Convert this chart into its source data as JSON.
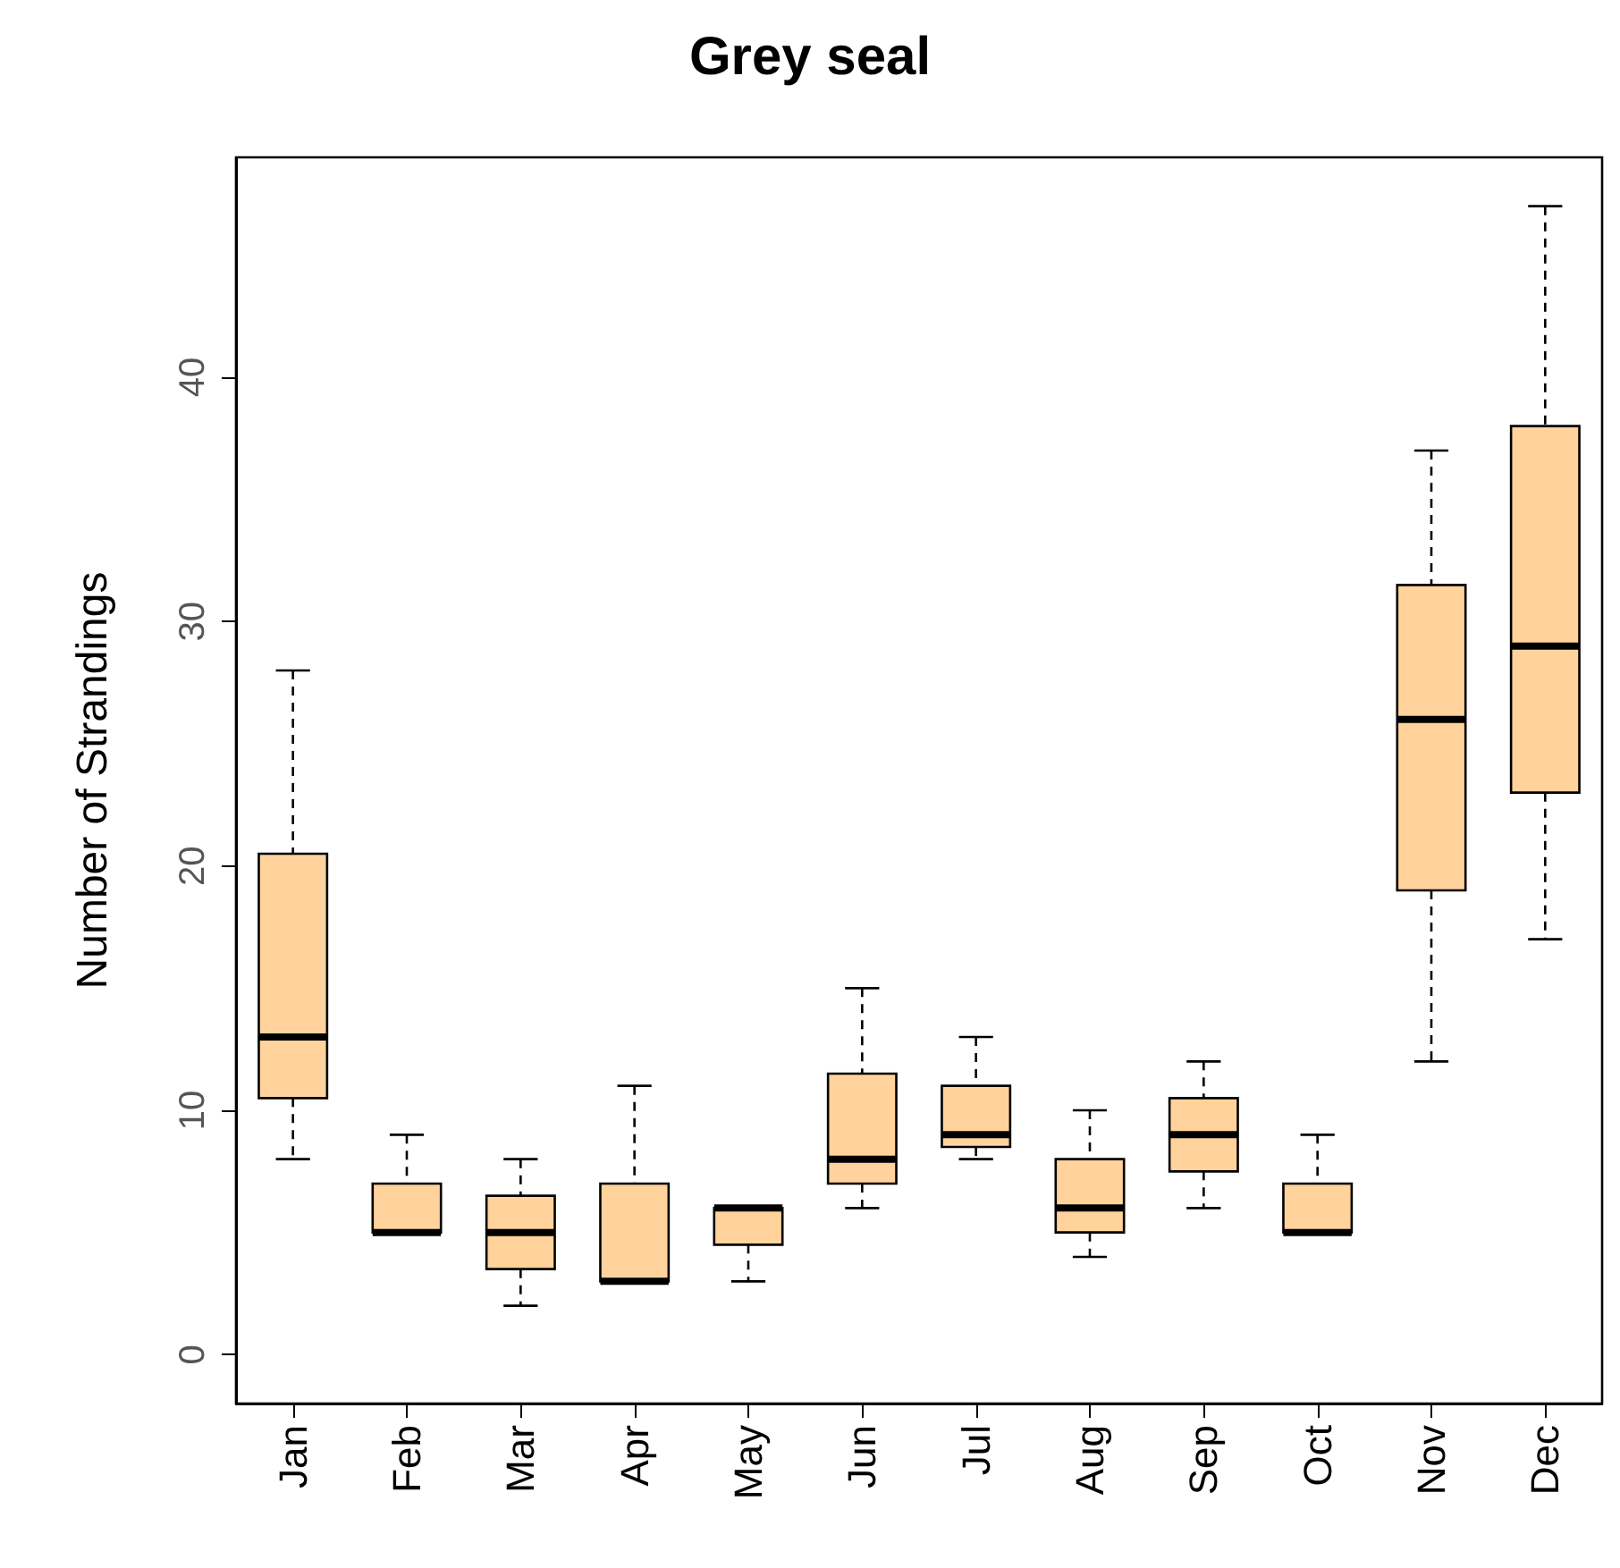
{
  "chart_data": {
    "type": "box",
    "title": "Grey seal",
    "ylabel": "Number of Strandings",
    "categories": [
      "Jan",
      "Feb",
      "Mar",
      "Apr",
      "May",
      "Jun",
      "Jul",
      "Aug",
      "Sep",
      "Oct",
      "Nov",
      "Dec"
    ],
    "color": "#ffd39b",
    "boxes": [
      {
        "low": 8,
        "q1": 10.5,
        "median": 13,
        "q3": 20.5,
        "high": 28
      },
      {
        "low": 5,
        "q1": 5,
        "median": 5,
        "q3": 7,
        "high": 9
      },
      {
        "low": 2,
        "q1": 3.5,
        "median": 5,
        "q3": 6.5,
        "high": 8
      },
      {
        "low": 3,
        "q1": 3,
        "median": 3,
        "q3": 7,
        "high": 11
      },
      {
        "low": 3,
        "q1": 4.5,
        "median": 6,
        "q3": 6,
        "high": 6
      },
      {
        "low": 6,
        "q1": 7,
        "median": 8,
        "q3": 11.5,
        "high": 15
      },
      {
        "low": 8,
        "q1": 8.5,
        "median": 9,
        "q3": 11,
        "high": 13
      },
      {
        "low": 4,
        "q1": 5,
        "median": 6,
        "q3": 8,
        "high": 10
      },
      {
        "low": 6,
        "q1": 7.5,
        "median": 9,
        "q3": 10.5,
        "high": 12
      },
      {
        "low": 5,
        "q1": 5,
        "median": 5,
        "q3": 7,
        "high": 9
      },
      {
        "low": 12,
        "q1": 19,
        "median": 26,
        "q3": 31.5,
        "high": 37
      },
      {
        "low": 17,
        "q1": 23,
        "median": 29,
        "q3": 38,
        "high": 47
      }
    ],
    "ylim": [
      -2,
      49
    ],
    "yticks": [
      0,
      10,
      20,
      30,
      40
    ],
    "grid": false
  }
}
